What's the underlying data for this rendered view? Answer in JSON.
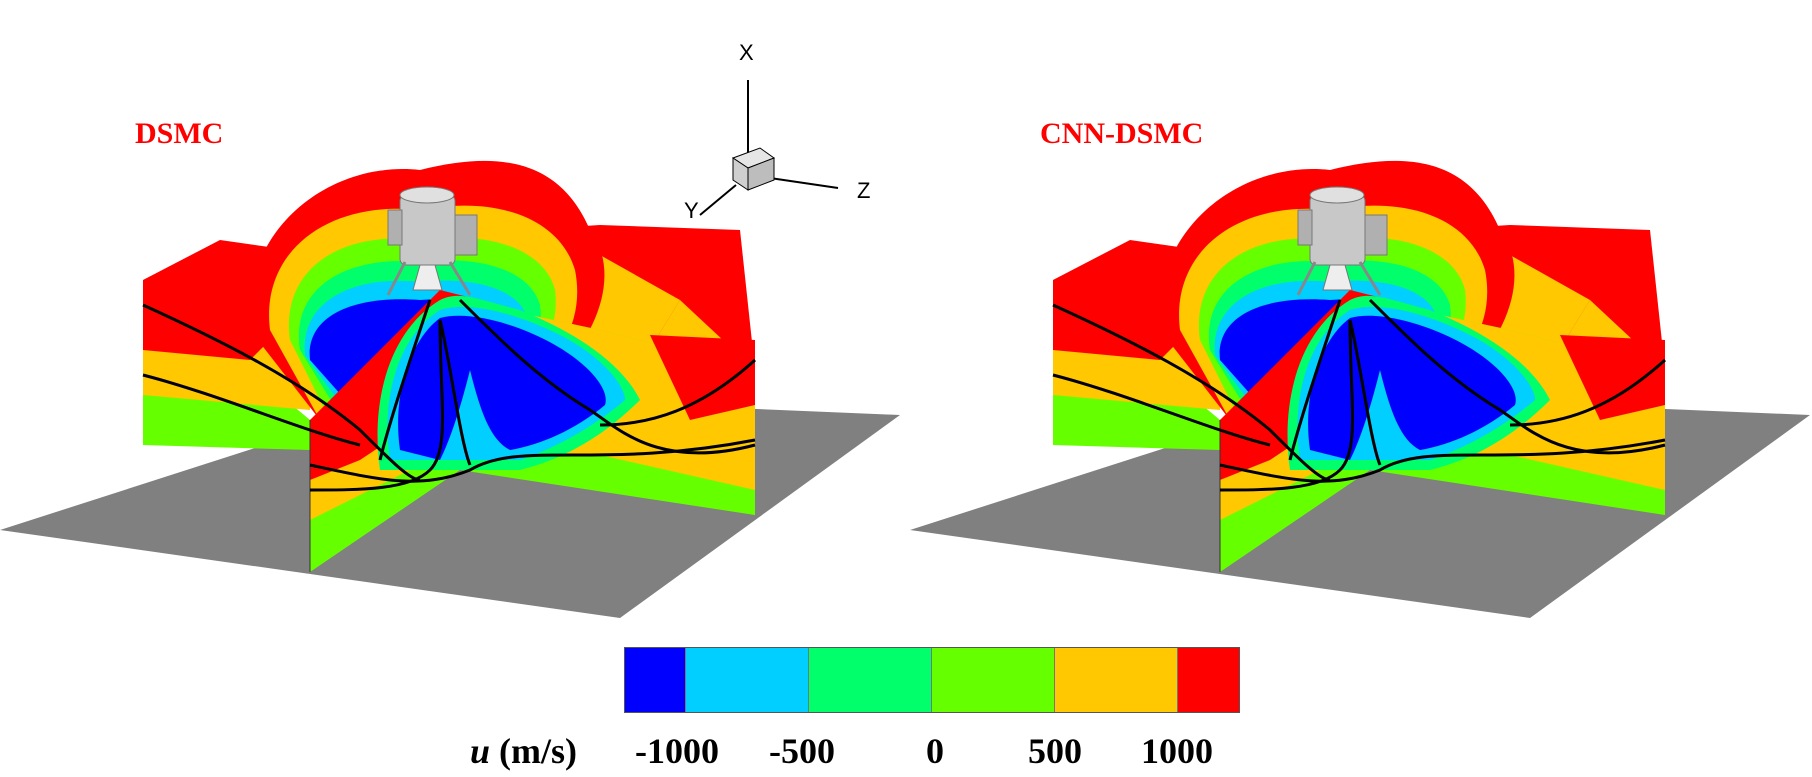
{
  "panels": [
    {
      "title": "DSMC"
    },
    {
      "title": "CNN-DSMC"
    }
  ],
  "axes_triad": {
    "x": "X",
    "y": "Y",
    "z": "Z"
  },
  "colorbar": {
    "variable": "u",
    "unit": "(m/s)",
    "tick_labels": [
      "-1000",
      "-500",
      "0",
      "500",
      "1000"
    ],
    "colors": [
      "#0000ff",
      "#00cfff",
      "#00ff6a",
      "#66ff00",
      "#ffc800",
      "#ff0000"
    ]
  },
  "colors": {
    "ground": "#808080",
    "lander": "#c8c8c8",
    "streamline": "#000000",
    "title": "#ff0000"
  }
}
